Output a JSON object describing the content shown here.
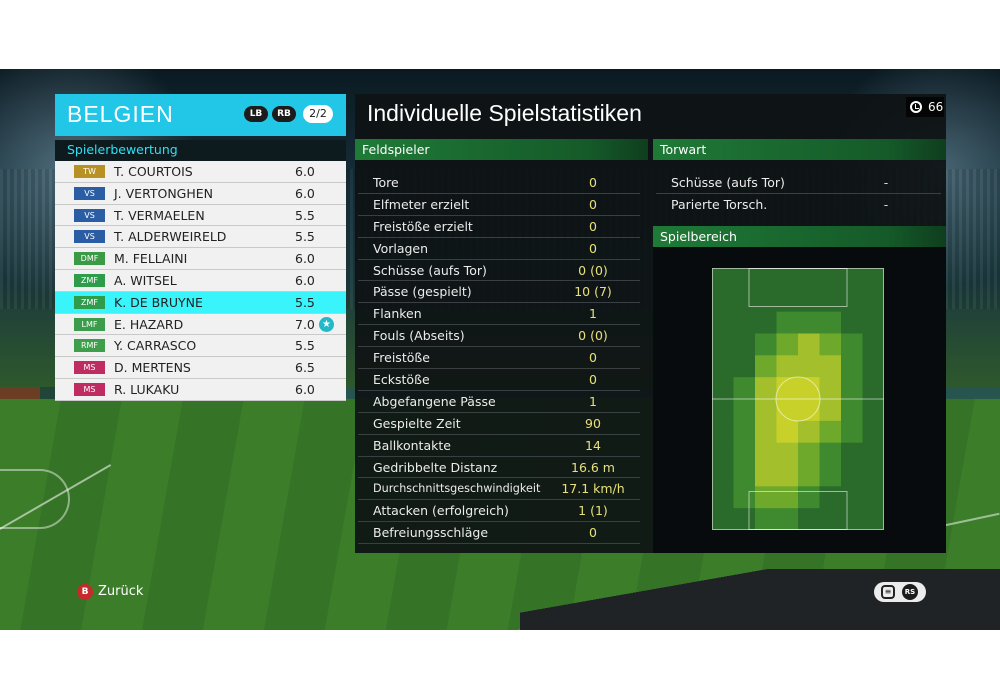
{
  "team": {
    "name": "BELGIEN",
    "lb_label": "LB",
    "rb_label": "RB",
    "page": "2/2",
    "rating_title": "Spielerbewertung"
  },
  "players": [
    {
      "position": "TW",
      "name": "T. COURTOIS",
      "rating": "6.0"
    },
    {
      "position": "VS",
      "name": "J. VERTONGHEN",
      "rating": "6.0"
    },
    {
      "position": "VS",
      "name": "T. VERMAELEN",
      "rating": "5.5"
    },
    {
      "position": "VS",
      "name": "T. ALDERWEIRELD",
      "rating": "5.5"
    },
    {
      "position": "DMF",
      "name": "M. FELLAINI",
      "rating": "6.0"
    },
    {
      "position": "ZMF",
      "name": "A. WITSEL",
      "rating": "6.0"
    },
    {
      "position": "ZMF",
      "name": "K. DE BRUYNE",
      "rating": "5.5",
      "selected": true
    },
    {
      "position": "LMF",
      "name": "E. HAZARD",
      "rating": "7.0",
      "man_of_match": true
    },
    {
      "position": "RMF",
      "name": "Y. CARRASCO",
      "rating": "5.5"
    },
    {
      "position": "MS",
      "name": "D. MERTENS",
      "rating": "6.5"
    },
    {
      "position": "MS",
      "name": "R. LUKAKU",
      "rating": "6.0"
    }
  ],
  "stats_panel": {
    "title": "Individuelle Spielstatistiken",
    "timer": "66",
    "field_section": "Feldspieler",
    "gk_section": "Torwart",
    "area_section": "Spielbereich"
  },
  "field_stats": [
    {
      "label": "Tore",
      "value": "0"
    },
    {
      "label": "Elfmeter erzielt",
      "value": "0"
    },
    {
      "label": "Freistöße erzielt",
      "value": "0"
    },
    {
      "label": "Vorlagen",
      "value": "0"
    },
    {
      "label": "Schüsse (aufs Tor)",
      "value": "0 (0)"
    },
    {
      "label": "Pässe (gespielt)",
      "value": "10 (7)"
    },
    {
      "label": "Flanken",
      "value": "1"
    },
    {
      "label": "Fouls (Abseits)",
      "value": "0 (0)"
    },
    {
      "label": "Freistöße",
      "value": "0"
    },
    {
      "label": "Eckstöße",
      "value": "0"
    },
    {
      "label": "Abgefangene Pässe",
      "value": "1"
    },
    {
      "label": "Gespielte Zeit",
      "value": "90"
    },
    {
      "label": "Ballkontakte",
      "value": "14"
    },
    {
      "label": "Gedribbelte Distanz",
      "value": "16.6 m"
    },
    {
      "label": "Durchschnittsgeschwindigkeit",
      "value": "17.1 km/h"
    },
    {
      "label": "Attacken (erfolgreich)",
      "value": "1 (1)"
    },
    {
      "label": "Befreiungsschläge",
      "value": "0"
    }
  ],
  "gk_stats": [
    {
      "label": "Schüsse (aufs Tor)",
      "value": "-"
    },
    {
      "label": "Parierte Torsch.",
      "value": "-"
    }
  ],
  "heatmap": {
    "cols": 8,
    "rows": 12,
    "cells": [
      [
        0,
        0,
        0,
        0,
        0,
        0,
        0,
        0
      ],
      [
        0,
        0,
        0,
        0,
        0,
        0,
        0,
        0
      ],
      [
        0,
        0,
        0,
        1,
        1,
        1,
        0,
        0
      ],
      [
        0,
        0,
        1,
        2,
        3,
        2,
        1,
        0
      ],
      [
        0,
        0,
        2,
        3,
        3,
        3,
        1,
        0
      ],
      [
        0,
        1,
        3,
        4,
        4,
        3,
        1,
        0
      ],
      [
        0,
        1,
        3,
        4,
        4,
        3,
        1,
        0
      ],
      [
        0,
        1,
        3,
        4,
        3,
        2,
        1,
        0
      ],
      [
        0,
        1,
        3,
        3,
        2,
        1,
        0,
        0
      ],
      [
        0,
        1,
        3,
        3,
        2,
        1,
        0,
        0
      ],
      [
        0,
        1,
        2,
        2,
        1,
        0,
        0,
        0
      ],
      [
        0,
        0,
        1,
        1,
        0,
        0,
        0,
        0
      ]
    ],
    "colors": [
      "#2a6b2b",
      "#3f8a2e",
      "#6fa92c",
      "#a3c02c",
      "#c8d12a"
    ]
  },
  "footer": {
    "back_button": "B",
    "back_label": "Zurück",
    "rs_label": "RS"
  },
  "colors": {
    "team_header": "#22c6e6",
    "selected_row": "#39f5fb",
    "section_green": "#1f7a37",
    "stat_value": "#e8e07a"
  }
}
